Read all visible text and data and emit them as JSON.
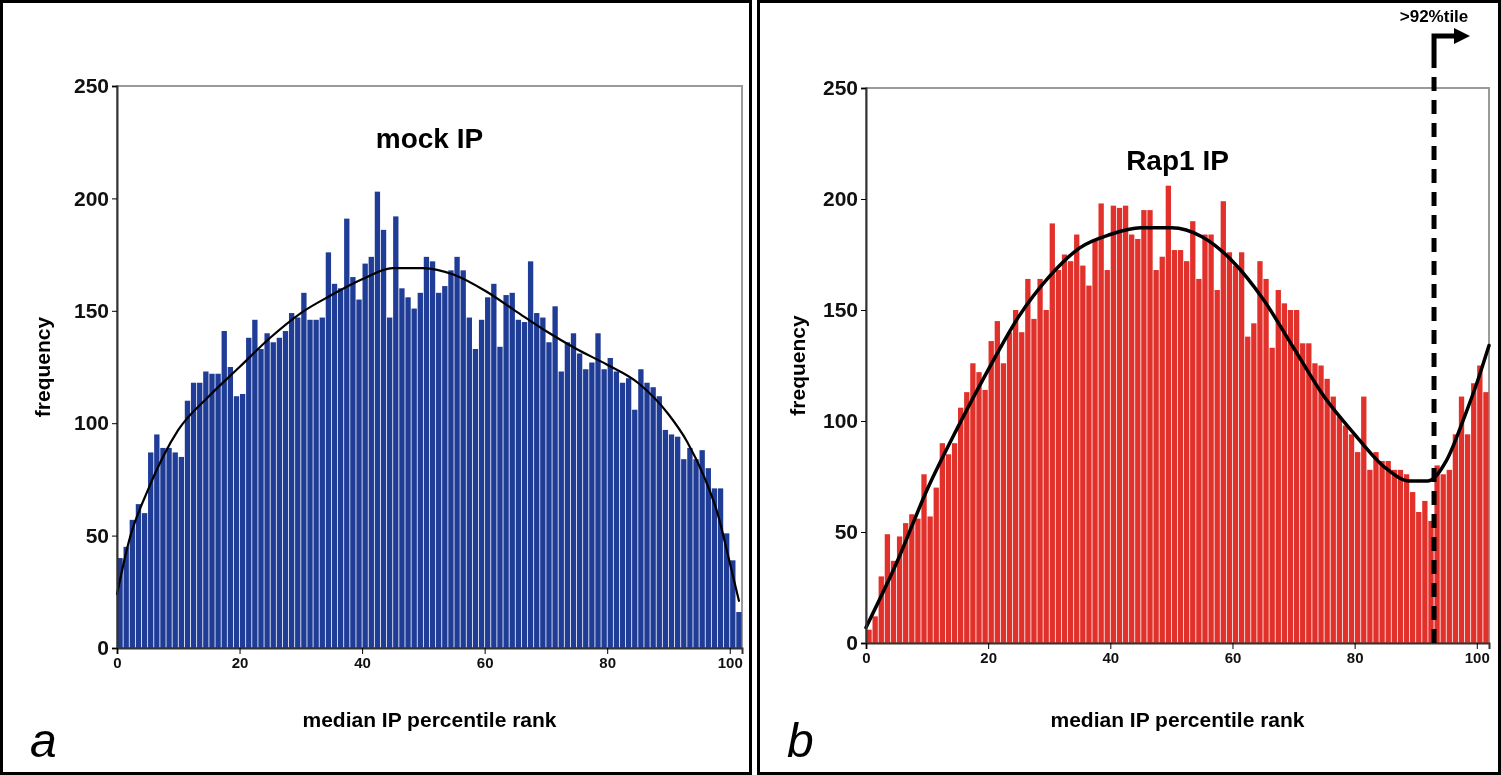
{
  "chart_data": [
    {
      "type": "histogram",
      "title": "mock IP",
      "xlabel": "median IP percentile rank",
      "ylabel": "frequency",
      "annotations": [
        "a"
      ],
      "bins": [
        0,
        1,
        2,
        3,
        4,
        5,
        6,
        7,
        8,
        9,
        10,
        11,
        12,
        13,
        14,
        15,
        16,
        17,
        18,
        19,
        20,
        21,
        22,
        23,
        24,
        25,
        26,
        27,
        28,
        29,
        30,
        31,
        32,
        33,
        34,
        35,
        36,
        37,
        38,
        39,
        40,
        41,
        42,
        43,
        44,
        45,
        46,
        47,
        48,
        49,
        50,
        51,
        52,
        53,
        54,
        55,
        56,
        57,
        58,
        59,
        60,
        61,
        62,
        63,
        64,
        65,
        66,
        67,
        68,
        69,
        70,
        71,
        72,
        73,
        74,
        75,
        76,
        77,
        78,
        79,
        80,
        81,
        82,
        83,
        84,
        85,
        86,
        87,
        88,
        89,
        90,
        91,
        92,
        93,
        94,
        95,
        96,
        97,
        98,
        99,
        100,
        101,
        102
      ],
      "series": [
        {
          "color": "#1f3c96",
          "values": [
            40,
            45,
            57,
            64,
            60,
            87,
            95,
            89,
            89,
            87,
            85,
            110,
            118,
            118,
            123,
            122,
            122,
            141,
            125,
            112,
            113,
            138,
            146,
            133,
            140,
            136,
            138,
            141,
            149,
            147,
            158,
            146,
            146,
            147,
            176,
            162,
            160,
            191,
            165,
            155,
            171,
            174,
            203,
            186,
            147,
            192,
            160,
            156,
            151,
            158,
            174,
            172,
            158,
            161,
            168,
            174,
            168,
            147,
            133,
            146,
            156,
            162,
            134,
            157,
            158,
            146,
            145,
            172,
            149,
            147,
            136,
            152,
            123,
            136,
            140,
            131,
            124,
            127,
            140,
            124,
            129,
            123,
            118,
            120,
            106,
            124,
            118,
            116,
            112,
            97,
            95,
            94,
            84,
            89,
            84,
            88,
            80,
            71,
            71,
            51,
            39,
            16
          ]
        },
        {
          "type": "line",
          "color": "#000000",
          "x": [
            0,
            2,
            5,
            10,
            15,
            20,
            25,
            30,
            35,
            40,
            45,
            50,
            55,
            60,
            65,
            70,
            75,
            80,
            85,
            90,
            93,
            96,
            98,
            100,
            101.5
          ],
          "values": [
            24,
            48,
            70,
            97,
            112,
            125,
            138,
            149,
            157,
            164,
            169,
            169,
            166,
            159,
            150,
            141,
            133,
            126,
            118,
            104,
            92,
            75,
            60,
            38,
            21
          ]
        }
      ],
      "xlim": [
        0,
        102
      ],
      "xticks": [
        0,
        20,
        40,
        60,
        80,
        100
      ],
      "ylim": [
        0,
        250
      ],
      "yticks": [
        0,
        50,
        100,
        150,
        200,
        250
      ]
    },
    {
      "type": "histogram",
      "title": "Rap1 IP",
      "xlabel": "median IP percentile rank",
      "ylabel": "frequency",
      "annotations": [
        "b"
      ],
      "bins": [
        0,
        1,
        2,
        3,
        4,
        5,
        6,
        7,
        8,
        9,
        10,
        11,
        12,
        13,
        14,
        15,
        16,
        17,
        18,
        19,
        20,
        21,
        22,
        23,
        24,
        25,
        26,
        27,
        28,
        29,
        30,
        31,
        32,
        33,
        34,
        35,
        36,
        37,
        38,
        39,
        40,
        41,
        42,
        43,
        44,
        45,
        46,
        47,
        48,
        49,
        50,
        51,
        52,
        53,
        54,
        55,
        56,
        57,
        58,
        59,
        60,
        61,
        62,
        63,
        64,
        65,
        66,
        67,
        68,
        69,
        70,
        71,
        72,
        73,
        74,
        75,
        76,
        77,
        78,
        79,
        80,
        81,
        82,
        83,
        84,
        85,
        86,
        87,
        88,
        89,
        90,
        91,
        92,
        93,
        94,
        95,
        96,
        97,
        98,
        99,
        100,
        101,
        102
      ],
      "series": [
        {
          "color": "#e2302a",
          "values": [
            6,
            12,
            30,
            49,
            37,
            48,
            54,
            58,
            56,
            76,
            57,
            70,
            90,
            85,
            90,
            106,
            113,
            126,
            122,
            114,
            136,
            145,
            126,
            140,
            150,
            140,
            164,
            146,
            164,
            150,
            189,
            168,
            175,
            172,
            184,
            170,
            161,
            182,
            198,
            168,
            197,
            196,
            197,
            184,
            182,
            195,
            195,
            168,
            174,
            206,
            177,
            177,
            172,
            190,
            164,
            184,
            184,
            159,
            199,
            176,
            170,
            176,
            138,
            144,
            172,
            164,
            133,
            159,
            153,
            150,
            150,
            135,
            135,
            126,
            125,
            119,
            111,
            102,
            98,
            94,
            86,
            111,
            78,
            86,
            82,
            82,
            78,
            78,
            76,
            68,
            59,
            64,
            55,
            80,
            76,
            78,
            94,
            111,
            94,
            117,
            125,
            113
          ]
        },
        {
          "type": "line",
          "color": "#000000",
          "x": [
            0,
            5,
            10,
            15,
            20,
            25,
            30,
            35,
            40,
            45,
            48,
            50,
            55,
            60,
            65,
            70,
            75,
            80,
            85,
            89,
            92,
            95,
            98,
            100,
            102
          ],
          "values": [
            7,
            36,
            69,
            97,
            123,
            147,
            165,
            178,
            184,
            187,
            187,
            187,
            183,
            172,
            155,
            133,
            111,
            94,
            79,
            73,
            73,
            82,
            102,
            117,
            134
          ]
        }
      ],
      "xlim": [
        0,
        102
      ],
      "xticks": [
        0,
        20,
        40,
        60,
        80,
        100
      ],
      "ylim": [
        0,
        250
      ],
      "yticks": [
        0,
        50,
        100,
        150,
        200,
        250
      ],
      "ref_lines": [
        {
          "axis": "x",
          "value": 93,
          "label": ">92%tile",
          "line_style": "dashed",
          "color": "#000000"
        }
      ]
    }
  ]
}
